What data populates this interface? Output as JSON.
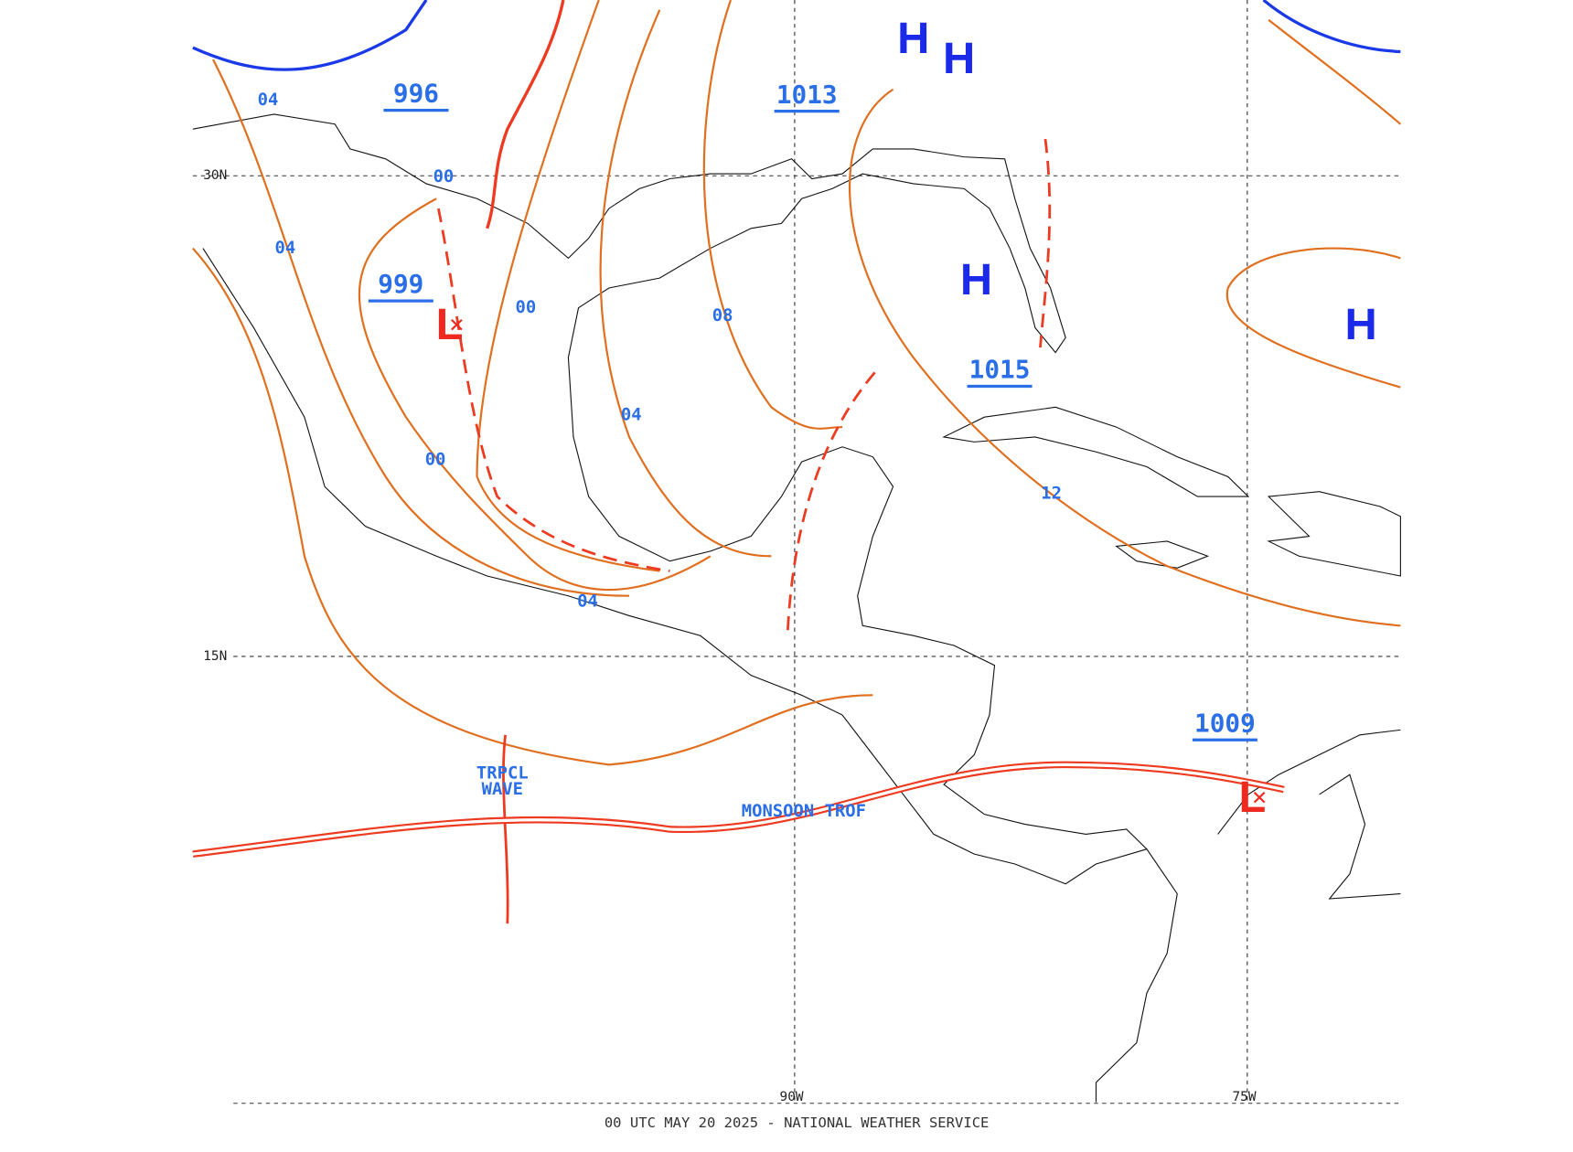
{
  "footer": "00 UTC MAY 20 2025 - NATIONAL WEATHER SERVICE",
  "grid_labels": [
    "30N",
    "15N",
    "90W",
    "75W"
  ],
  "pressure_labels": [
    "996",
    "1013",
    "999",
    "1015",
    "1009"
  ],
  "highs": [
    "H",
    "H",
    "H",
    "H"
  ],
  "lows": [
    "L",
    "L"
  ],
  "isobar_labels": [
    "04",
    "00",
    "04",
    "00",
    "08",
    "04",
    "00",
    "12",
    "04"
  ],
  "features": {
    "tropical_wave": [
      "TRPCL",
      "WAVE"
    ],
    "monsoon_trough": "MONSOON TROF"
  }
}
